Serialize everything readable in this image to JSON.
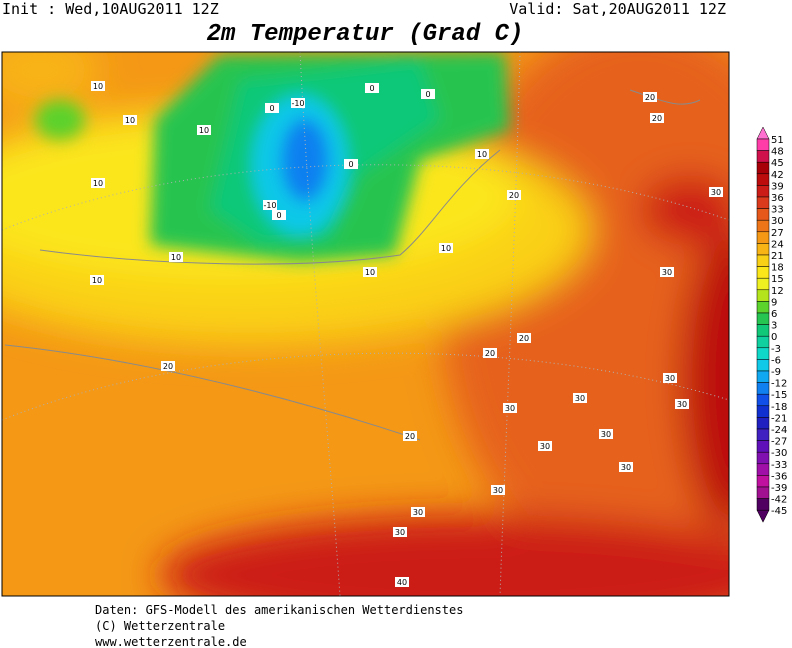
{
  "header": {
    "init": "Init : Wed,10AUG2011 12Z",
    "valid": "Valid: Sat,20AUG2011 12Z",
    "title": "2m Temperatur (Grad C)"
  },
  "colorbar": {
    "levels": [
      51,
      48,
      45,
      42,
      39,
      36,
      33,
      30,
      27,
      24,
      21,
      18,
      15,
      12,
      9,
      6,
      3,
      0,
      -3,
      -6,
      -9,
      -12,
      -15,
      -18,
      -21,
      -24,
      -27,
      -30,
      -33,
      -36,
      -39,
      -42,
      -45
    ],
    "colors": [
      "#ff70d0",
      "#ff3ca8",
      "#d0104a",
      "#a80008",
      "#bc0c0c",
      "#cc1c18",
      "#dc3a1c",
      "#e6581a",
      "#ee7618",
      "#f49816",
      "#f8b414",
      "#fad016",
      "#fbe61a",
      "#eef022",
      "#b4e41c",
      "#5cd22c",
      "#26c450",
      "#10c878",
      "#10d0a0",
      "#10d8c8",
      "#10c8e8",
      "#10a8f0",
      "#1080f0",
      "#1050e8",
      "#1030d0",
      "#2020c0",
      "#4020c0",
      "#6010b8",
      "#8010b0",
      "#a010a8",
      "#c010a0",
      "#a01090",
      "#500060"
    ]
  },
  "contour_labels": [
    "10",
    "10",
    "10",
    "10",
    "10",
    "10",
    "-10",
    "0",
    "0",
    "0",
    "0",
    "-10",
    "0",
    "10",
    "10",
    "10",
    "20",
    "20",
    "20",
    "20",
    "20",
    "20",
    "20",
    "30",
    "30",
    "30",
    "30",
    "30",
    "30",
    "30",
    "30",
    "30",
    "30",
    "30",
    "30",
    "40"
  ],
  "footer": [
    "Daten: GFS-Modell des amerikanischen Wetterdienstes",
    "(C) Wetterzentrale",
    "www.wetterzentrale.de"
  ]
}
